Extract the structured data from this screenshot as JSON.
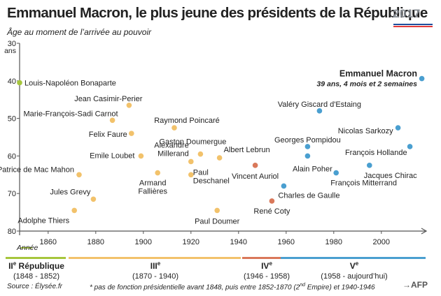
{
  "header": {
    "title": "Emmanuel Macron, le plus jeune des présidents de la République",
    "subtitle": "Âge au moment de l’arrivée au pouvoir",
    "logo_text": "2017"
  },
  "colors": {
    "II": "#a6c63c",
    "III": "#f2c26b",
    "IV": "#d9785a",
    "V": "#4a9fd0",
    "axis": "#555555"
  },
  "chart_data": {
    "type": "scatter",
    "title": "Emmanuel Macron, le plus jeune des présidents de la République",
    "ylabel": "Âge au moment de l’arrivée au pouvoir",
    "y_unit": "ans",
    "xlabel": "Année",
    "xlim": [
      1848,
      2018
    ],
    "ylim": [
      30,
      80
    ],
    "y_inverted": true,
    "x_ticks": [
      1860,
      1880,
      1900,
      1920,
      1940,
      1960,
      1980,
      2000
    ],
    "y_ticks": [
      30,
      40,
      50,
      60,
      70,
      80
    ],
    "points": [
      {
        "label": "Louis-Napoléon Bonaparte",
        "x": 1848,
        "y": 40.5,
        "republic": "II"
      },
      {
        "label": "Adolphe Thiers",
        "x": 1871,
        "y": 74.5,
        "republic": "III"
      },
      {
        "label": "Patrice de Mac Mahon",
        "x": 1873,
        "y": 65,
        "republic": "III"
      },
      {
        "label": "Jules Grevy",
        "x": 1879,
        "y": 71.5,
        "republic": "III"
      },
      {
        "label": "Marie-François-Sadi Carnot",
        "x": 1887,
        "y": 50.5,
        "republic": "III"
      },
      {
        "label": "Jean Casimir-Perier",
        "x": 1894,
        "y": 46.5,
        "republic": "III"
      },
      {
        "label": "Felix Faure",
        "x": 1895,
        "y": 54,
        "republic": "III"
      },
      {
        "label": "Emile Loubet",
        "x": 1899,
        "y": 60,
        "republic": "III"
      },
      {
        "label": "Armand Fallières",
        "x": 1906,
        "y": 64.5,
        "republic": "III"
      },
      {
        "label": "Raymond Poincaré",
        "x": 1913,
        "y": 52.5,
        "republic": "III"
      },
      {
        "label": "Paul Deschanel",
        "x": 1920,
        "y": 65,
        "republic": "III"
      },
      {
        "label": "Alexandre Millerand",
        "x": 1920,
        "y": 61.5,
        "republic": "III"
      },
      {
        "label": "Gaston Doumergue",
        "x": 1924,
        "y": 59.5,
        "republic": "III"
      },
      {
        "label": "Paul Doumer",
        "x": 1931,
        "y": 74.5,
        "republic": "III"
      },
      {
        "label": "Albert Lebrun",
        "x": 1932,
        "y": 60.5,
        "republic": "III"
      },
      {
        "label": "Vincent Auriol",
        "x": 1947,
        "y": 62.5,
        "republic": "IV"
      },
      {
        "label": "René Coty",
        "x": 1954,
        "y": 72,
        "republic": "IV"
      },
      {
        "label": "Charles de Gaulle",
        "x": 1959,
        "y": 68,
        "republic": "V"
      },
      {
        "label": "Alain Poher",
        "x": 1969,
        "y": 60,
        "republic": "V"
      },
      {
        "label": "Georges Pompidou",
        "x": 1969,
        "y": 57.5,
        "republic": "V"
      },
      {
        "label": "Valéry Giscard d'Estaing",
        "x": 1974,
        "y": 48,
        "republic": "V"
      },
      {
        "label": "François Mitterrand",
        "x": 1981,
        "y": 64.5,
        "republic": "V"
      },
      {
        "label": "Jacques Chirac",
        "x": 1995,
        "y": 62.5,
        "republic": "V"
      },
      {
        "label": "Nicolas Sarkozy",
        "x": 2007,
        "y": 52.5,
        "republic": "V"
      },
      {
        "label": "François Hollande",
        "x": 2012,
        "y": 57.5,
        "republic": "V"
      },
      {
        "label": "Emmanuel Macron",
        "x": 2017,
        "y": 39.4,
        "republic": "V"
      }
    ],
    "highlight": {
      "label": "Emmanuel Macron",
      "detail": "39 ans, 4 mois et 2 semaines"
    },
    "periods": [
      {
        "name": "II",
        "sup": "e",
        "suffix": " République",
        "range": "(1848 - 1852)",
        "start": 1848,
        "end": 1852,
        "color_key": "II"
      },
      {
        "name": "III",
        "sup": "e",
        "suffix": "",
        "range": "(1870 - 1940)",
        "start": 1870,
        "end": 1940,
        "color_key": "III"
      },
      {
        "name": "IV",
        "sup": "e",
        "suffix": "",
        "range": "(1946 - 1958)",
        "start": 1946,
        "end": 1958,
        "color_key": "IV"
      },
      {
        "name": "V",
        "sup": "e",
        "suffix": "",
        "range": "(1958 - aujourd’hui)",
        "start": 1958,
        "end": 2018,
        "color_key": "V"
      }
    ]
  },
  "footer": {
    "source": "Source : Élysée.fr",
    "note_pre": "* pas de fonction présidentielle avant 1848, puis entre 1852-1870 (2",
    "note_sup": "nd",
    "note_post": " Empire) et 1940-1946",
    "agency": "AFP"
  }
}
